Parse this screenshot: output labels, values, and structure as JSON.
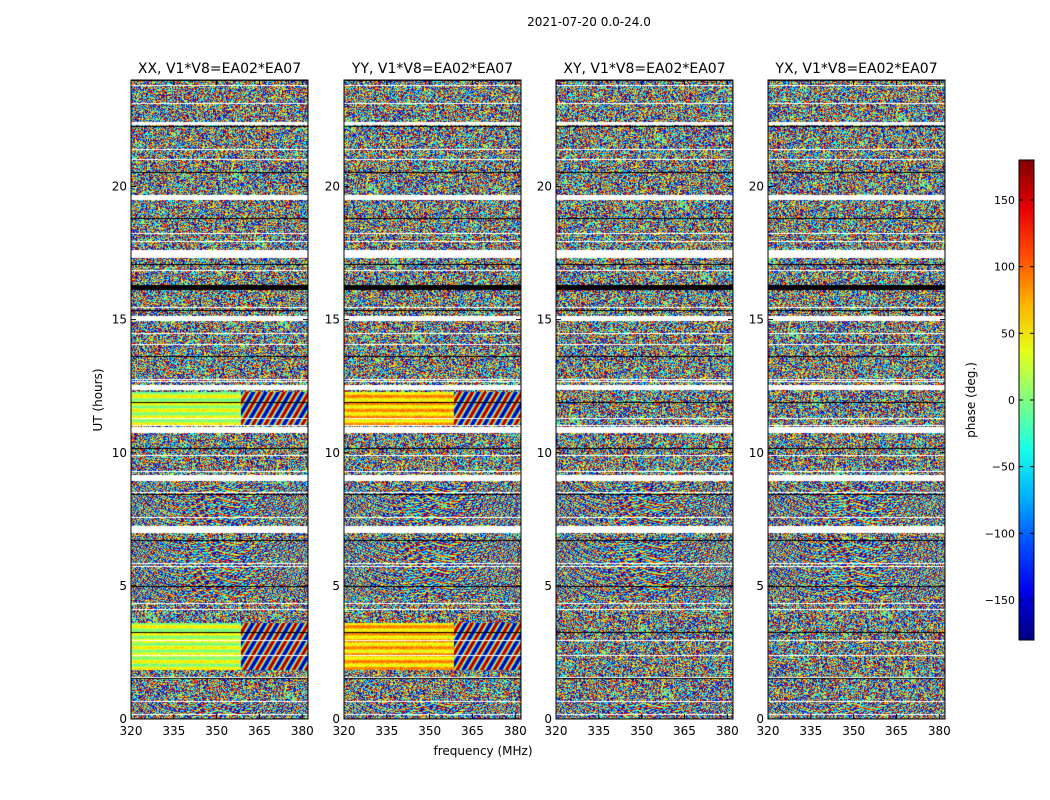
{
  "chart_data": {
    "type": "heatmap",
    "title": "2021-07-20 0.0-24.0",
    "xlabel": "frequency (MHz)",
    "ylabel": "UT (hours)",
    "xlim": [
      320,
      382
    ],
    "ylim": [
      0,
      24
    ],
    "xticks": [
      320,
      335,
      350,
      365,
      380
    ],
    "yticks": [
      0,
      5,
      10,
      15,
      20
    ],
    "panels": [
      {
        "title": "XX, V1*V8=EA02*EA07",
        "pol": "XX",
        "cross": false,
        "calcolor": 25
      },
      {
        "title": "YY, V1*V8=EA02*EA07",
        "pol": "YY",
        "cross": false,
        "calcolor": 65
      },
      {
        "title": "XY, V1*V8=EA02*EA07",
        "pol": "XY",
        "cross": true,
        "calcolor": 0
      },
      {
        "title": "YX, V1*V8=EA02*EA07",
        "pol": "YX",
        "cross": true,
        "calcolor": 0
      }
    ],
    "colorbar": {
      "label": "phase (deg.)",
      "range": [
        -180,
        180
      ],
      "ticks": [
        150,
        100,
        50,
        0,
        -50,
        -100,
        -150
      ],
      "tick_labels": [
        "150",
        "100",
        "50",
        "0",
        "−50",
        "−100",
        "−150"
      ],
      "colormap": "jet"
    },
    "flagged_bands_hours": [
      [
        16.1,
        16.3
      ]
    ],
    "gap_bands_hours": [
      [
        17.3,
        17.6
      ],
      [
        14.95,
        15.15
      ],
      [
        12.35,
        12.55
      ],
      [
        10.75,
        10.95
      ],
      [
        8.95,
        9.15
      ],
      [
        7.0,
        7.25
      ],
      [
        19.5,
        19.65
      ],
      [
        22.3,
        22.4
      ]
    ],
    "fringe_bands_hours": [
      [
        4.6,
        6.8
      ],
      [
        7.3,
        8.8
      ],
      [
        0.1,
        0.6
      ]
    ],
    "calibrator_bands_hours": [
      [
        1.85,
        3.6
      ],
      [
        11.0,
        12.3
      ]
    ]
  }
}
